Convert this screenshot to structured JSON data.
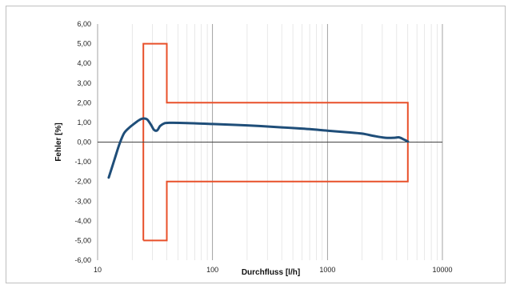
{
  "chart_data": {
    "type": "line",
    "xlabel": "Durchfluss [l/h]",
    "ylabel": "Fehler [%]",
    "x_scale": "log",
    "xlim": [
      10,
      10000
    ],
    "ylim": [
      -6,
      6
    ],
    "x_tick_labels": [
      "10",
      "100",
      "1000",
      "10000"
    ],
    "y_tick_labels": [
      "6,00",
      "5,00",
      "4,00",
      "3,00",
      "2,00",
      "1,00",
      "0,00",
      "-1,00",
      "-2,00",
      "-3,00",
      "-4,00",
      "-5,00",
      "-6,00"
    ],
    "grid": true,
    "series": [
      {
        "kind": "curve",
        "color": "#1f4e79",
        "points": [
          [
            12.5,
            -1.8
          ],
          [
            14,
            -0.9
          ],
          [
            15.5,
            -0.1
          ],
          [
            17,
            0.45
          ],
          [
            19,
            0.75
          ],
          [
            21,
            0.95
          ],
          [
            23,
            1.12
          ],
          [
            25,
            1.2
          ],
          [
            27,
            1.15
          ],
          [
            29,
            0.9
          ],
          [
            31,
            0.62
          ],
          [
            33,
            0.6
          ],
          [
            35,
            0.82
          ],
          [
            38,
            0.95
          ],
          [
            42,
            0.98
          ],
          [
            60,
            0.97
          ],
          [
            100,
            0.92
          ],
          [
            200,
            0.85
          ],
          [
            400,
            0.75
          ],
          [
            700,
            0.66
          ],
          [
            1000,
            0.58
          ],
          [
            1500,
            0.5
          ],
          [
            2000,
            0.43
          ],
          [
            2600,
            0.3
          ],
          [
            3200,
            0.22
          ],
          [
            3800,
            0.22
          ],
          [
            4200,
            0.24
          ],
          [
            4600,
            0.14
          ],
          [
            5000,
            0.03
          ]
        ]
      },
      {
        "kind": "error-limit-polygon",
        "color": "#e8502a",
        "points": [
          [
            25,
            -5
          ],
          [
            25,
            5
          ],
          [
            40,
            5
          ],
          [
            40,
            2
          ],
          [
            5000,
            2
          ],
          [
            5000,
            -2
          ],
          [
            40,
            -2
          ],
          [
            40,
            -5
          ],
          [
            25,
            -5
          ]
        ]
      }
    ]
  }
}
